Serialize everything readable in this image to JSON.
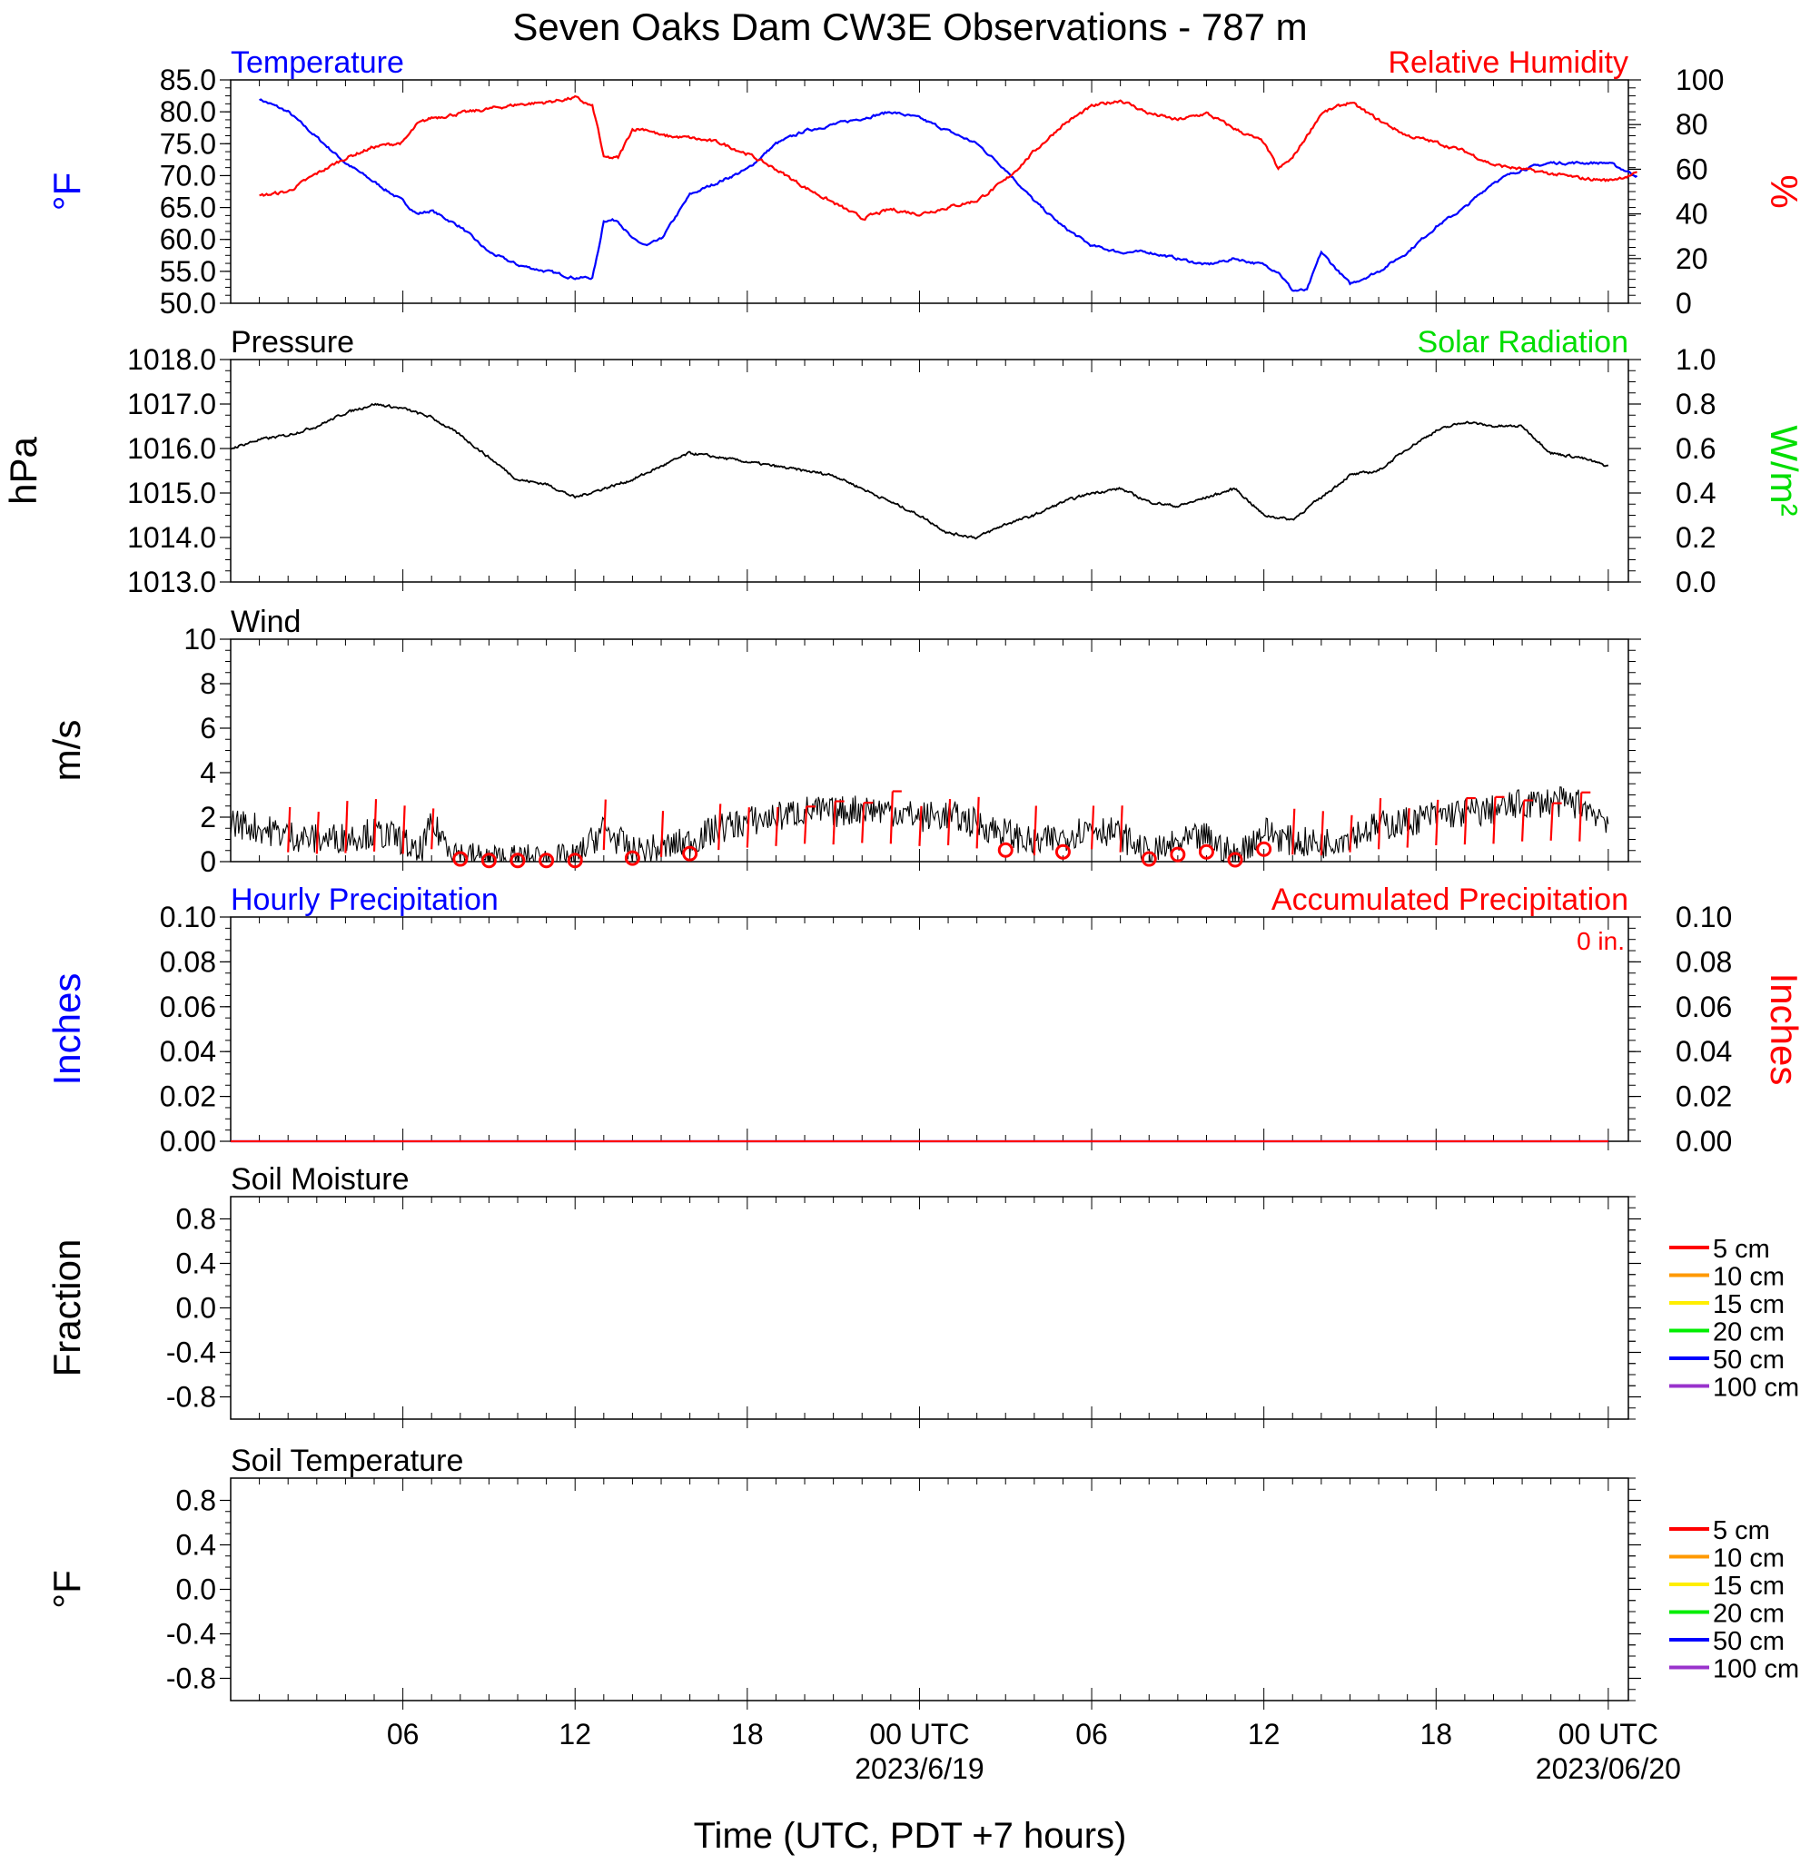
{
  "page": {
    "title": "Seven Oaks Dam CW3E Observations - 787 m",
    "xlabel": "Time (UTC, PDT +7 hours)"
  },
  "time_axis": {
    "ticks": [
      {
        "hour": 6,
        "label": "06",
        "sublabel": ""
      },
      {
        "hour": 12,
        "label": "12",
        "sublabel": ""
      },
      {
        "hour": 18,
        "label": "18",
        "sublabel": ""
      },
      {
        "hour": 24,
        "label": "00 UTC",
        "sublabel": "2023/6/19"
      },
      {
        "hour": 30,
        "label": "06",
        "sublabel": ""
      },
      {
        "hour": 36,
        "label": "12",
        "sublabel": ""
      },
      {
        "hour": 42,
        "label": "18",
        "sublabel": ""
      },
      {
        "hour": 48,
        "label": "00 UTC",
        "sublabel": "2023/06/20"
      }
    ]
  },
  "legend": {
    "soil_depths": [
      "5 cm",
      "10 cm",
      "15 cm",
      "20 cm",
      "50 cm",
      "100 cm"
    ]
  },
  "colors": {
    "temperature": "#0000ff",
    "humidity": "#ff0000",
    "pressure": "#000000",
    "solar": "#00dd00",
    "wind": "#000000",
    "barbs": "#ff0000",
    "soil_5": "#ff0000",
    "soil_10": "#ff9900",
    "soil_15": "#ffee00",
    "soil_20": "#00ee00",
    "soil_50": "#0000ff",
    "soil_100": "#9933cc"
  },
  "chart_data": [
    {
      "type": "line",
      "title_left": "Temperature",
      "title_right": "Relative Humidity",
      "ylabel_left": "°F",
      "ylabel_right": "%",
      "ylim_left": [
        50,
        85
      ],
      "ylim_right": [
        0,
        100
      ],
      "yticks_left": [
        "85.0",
        "80.0",
        "75.0",
        "70.0",
        "65.0",
        "60.0",
        "55.0",
        "50.0"
      ],
      "yticks_right": [
        "100",
        "80",
        "60",
        "40",
        "20",
        "0"
      ],
      "x_hours": [
        1,
        2,
        3,
        4,
        5,
        6,
        6.5,
        7,
        8,
        9,
        10,
        11,
        12,
        12.6,
        12.8,
        13,
        13.5,
        14,
        14.5,
        15,
        16,
        17,
        18,
        19,
        20,
        21,
        22,
        23,
        24,
        25,
        26,
        27,
        28,
        29,
        30,
        31,
        32,
        33,
        34,
        35,
        36,
        36.5,
        37,
        37.5,
        38,
        39,
        40,
        41,
        42,
        43,
        44,
        45,
        46,
        47,
        48,
        49
      ],
      "series": [
        {
          "name": "Temperature",
          "axis": "left",
          "values": [
            82,
            80,
            76,
            72,
            69,
            66,
            64,
            64.5,
            62,
            58,
            56,
            55,
            54,
            54,
            58,
            63,
            63,
            60,
            59,
            60,
            67,
            69,
            71,
            75,
            77,
            78,
            79,
            80,
            79,
            77,
            75,
            71,
            66,
            62,
            59,
            58,
            58,
            57,
            56,
            57,
            56,
            55,
            52,
            52,
            58,
            53,
            55,
            58,
            62,
            65,
            69,
            71,
            72,
            72,
            72,
            70
          ]
        },
        {
          "name": "Relative Humidity",
          "axis": "right",
          "values": [
            48,
            50,
            58,
            65,
            70,
            72,
            80,
            83,
            85,
            87,
            89,
            90,
            92,
            88,
            78,
            65,
            65,
            78,
            78,
            75,
            74,
            72,
            67,
            60,
            52,
            45,
            38,
            42,
            40,
            43,
            46,
            55,
            68,
            80,
            88,
            91,
            85,
            82,
            85,
            78,
            72,
            60,
            65,
            75,
            85,
            90,
            82,
            75,
            72,
            68,
            62,
            60,
            58,
            56,
            55,
            58
          ]
        }
      ]
    },
    {
      "type": "line",
      "title_left": "Pressure",
      "title_right": "Solar Radiation",
      "ylabel_left": "hPa",
      "ylabel_right": "W/m²",
      "ylim_left": [
        1013,
        1018
      ],
      "ylim_right": [
        0,
        1
      ],
      "yticks_left": [
        "1018.0",
        "1017.0",
        "1016.0",
        "1015.0",
        "1014.0",
        "1013.0"
      ],
      "yticks_right": [
        "1.0",
        "0.8",
        "0.6",
        "0.4",
        "0.2",
        "0.0"
      ],
      "x_hours": [
        0,
        1,
        2,
        3,
        4,
        5,
        6,
        7,
        8,
        9,
        10,
        11,
        12,
        13,
        14,
        15,
        16,
        17,
        18,
        19,
        20,
        21,
        22,
        23,
        24,
        25,
        26,
        27,
        28,
        29,
        30,
        31,
        32,
        33,
        34,
        35,
        36,
        37,
        38,
        39,
        40,
        41,
        42,
        43,
        44,
        45,
        46,
        47,
        48
      ],
      "series": [
        {
          "name": "Pressure",
          "axis": "left",
          "values": [
            1016.0,
            1016.2,
            1016.3,
            1016.5,
            1016.8,
            1017.0,
            1016.9,
            1016.7,
            1016.3,
            1015.8,
            1015.3,
            1015.2,
            1014.9,
            1015.1,
            1015.3,
            1015.6,
            1015.9,
            1015.8,
            1015.7,
            1015.6,
            1015.5,
            1015.4,
            1015.1,
            1014.8,
            1014.5,
            1014.1,
            1014.0,
            1014.3,
            1014.5,
            1014.8,
            1015.0,
            1015.1,
            1014.8,
            1014.7,
            1014.9,
            1015.1,
            1014.5,
            1014.4,
            1014.9,
            1015.4,
            1015.5,
            1016.0,
            1016.4,
            1016.6,
            1016.5,
            1016.5,
            1015.9,
            1015.8,
            1015.6
          ]
        },
        {
          "name": "Solar Radiation",
          "axis": "right",
          "values": []
        }
      ]
    },
    {
      "type": "line",
      "title_left": "Wind",
      "ylabel_left": "m/s",
      "ylim_left": [
        0,
        10
      ],
      "yticks_left": [
        "10",
        "8",
        "6",
        "4",
        "2",
        "0"
      ],
      "x_hours": [
        0,
        1,
        2,
        3,
        4,
        5,
        6,
        6.5,
        7,
        8,
        9,
        10,
        11,
        12,
        13,
        14,
        15,
        16,
        17,
        18,
        19,
        20,
        21,
        22,
        23,
        24,
        25,
        26,
        27,
        28,
        29,
        30,
        31,
        32,
        33,
        34,
        35,
        36,
        37,
        38,
        39,
        40,
        41,
        42,
        43,
        44,
        45,
        46,
        47,
        48
      ],
      "series": [
        {
          "name": "Wind Speed",
          "values": [
            1.8,
            1.5,
            1.2,
            1.0,
            1.1,
            1.3,
            1.0,
            0.2,
            1.6,
            0.3,
            0.1,
            0.1,
            0.1,
            0.1,
            1.5,
            0.4,
            0.6,
            0.9,
            1.5,
            1.8,
            2.0,
            2.3,
            2.2,
            2.4,
            2.3,
            2.0,
            2.1,
            1.7,
            1.3,
            0.8,
            1.1,
            1.6,
            1.2,
            0.3,
            0.8,
            1.1,
            0.2,
            1.4,
            0.9,
            0.8,
            1.2,
            1.6,
            1.8,
            2.1,
            2.2,
            2.3,
            2.6,
            2.7,
            2.6,
            1.9
          ]
        }
      ],
      "calm_hours": [
        8,
        9,
        10,
        11,
        12,
        14,
        16,
        27,
        29,
        32,
        33,
        34,
        35,
        36
      ],
      "barb_hours": [
        2,
        3,
        4,
        5,
        6,
        7,
        13,
        15,
        17,
        18,
        19,
        20,
        21,
        22,
        23,
        24,
        25,
        26,
        28,
        30,
        31,
        37,
        38,
        39,
        40,
        41,
        42,
        43,
        44,
        45,
        46,
        47
      ]
    },
    {
      "type": "line",
      "title_left": "Hourly Precipitation",
      "title_right": "Accumulated Precipitation",
      "annotation": "0 in.",
      "ylabel_left": "Inches",
      "ylabel_right": "Inches",
      "ylim_left": [
        0,
        0.1
      ],
      "ylim_right": [
        0,
        0.1
      ],
      "yticks_left": [
        "0.10",
        "0.08",
        "0.06",
        "0.04",
        "0.02",
        "0.00"
      ],
      "yticks_right": [
        "0.10",
        "0.08",
        "0.06",
        "0.04",
        "0.02",
        "0.00"
      ],
      "x_hours": [
        0,
        48
      ],
      "series": [
        {
          "name": "Hourly Precipitation",
          "axis": "left",
          "values": [
            0,
            0
          ]
        },
        {
          "name": "Accumulated Precipitation",
          "axis": "right",
          "values": [
            0,
            0
          ]
        }
      ]
    },
    {
      "type": "line",
      "title_left": "Soil Moisture",
      "ylabel_left": "Fraction",
      "ylim_left": [
        -1,
        1
      ],
      "yticks_left": [
        "0.8",
        "0.4",
        "0.0",
        "-0.4",
        "-0.8"
      ],
      "series": []
    },
    {
      "type": "line",
      "title_left": "Soil Temperature",
      "ylabel_left": "°F",
      "ylim_left": [
        -1,
        1
      ],
      "yticks_left": [
        "0.8",
        "0.4",
        "0.0",
        "-0.4",
        "-0.8"
      ],
      "series": []
    }
  ]
}
